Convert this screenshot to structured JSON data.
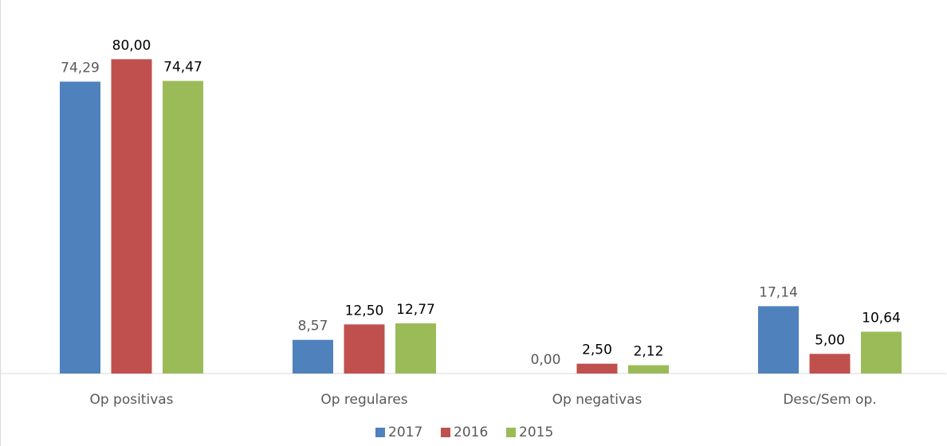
{
  "chart_data": {
    "type": "bar",
    "categories": [
      "Op positivas",
      "Op regulares",
      "Op negativas",
      "Desc/Sem op."
    ],
    "series": [
      {
        "name": "2017",
        "color": "#4f81bd",
        "values": [
          74.29,
          8.57,
          0,
          17.14
        ],
        "value_labels": [
          "74,29",
          "8,57",
          "0,00",
          "17,14"
        ]
      },
      {
        "name": "2016",
        "color": "#c0504d",
        "values": [
          80,
          12.5,
          2.5,
          5
        ],
        "value_labels": [
          "80,00",
          "12,50",
          "2,50",
          "5,00"
        ]
      },
      {
        "name": "2015",
        "color": "#9bbb59",
        "values": [
          74.47,
          12.77,
          2.12,
          10.64
        ],
        "value_labels": [
          "74,47",
          "12,77",
          "2,12",
          "10,64"
        ]
      }
    ],
    "ylim": [
      0,
      90
    ],
    "legend": "bottom"
  }
}
